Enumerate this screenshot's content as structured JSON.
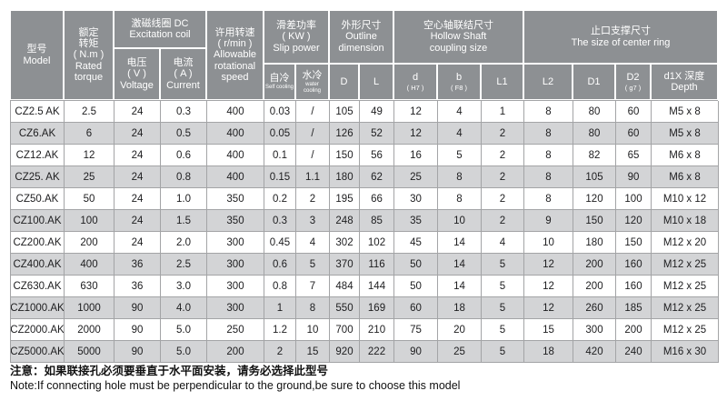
{
  "colors": {
    "header_bg": "#8d9093",
    "header_text": "#ffffff",
    "stripe_bg": "#d3d4d6",
    "row_bg": "#ffffff",
    "border": "#a3a4a6",
    "body_text": "#1d1d1f",
    "note_text": "#111111"
  },
  "header": {
    "model": "型号\nModel",
    "rated_torque": "额定\n转矩\n( N.m )\nRated\ntorque",
    "excitation_coil": "激磁线圈 DC\nExcitation coil",
    "voltage": "电压\n( V )\nVoltage",
    "current": "电流\n( A )\nCurrent",
    "speed": "许用转速\n( r/min )\nAllowable\nrotational\nspeed",
    "slip_power": "滑差功率\n( KW )\nSlip power",
    "self_cooling": {
      "main": "自冷",
      "sub": "Self cooling"
    },
    "water_cooling": {
      "main": "水冷",
      "sub": "water cooling"
    },
    "outline": "外形尺寸\nOutline\ndimension",
    "col_D": "D",
    "col_L": "L",
    "hollow_shaft": "空心轴联结尺寸\nHollow Shaft\ncoupling size",
    "col_d": {
      "main": "d",
      "sub": "( H7 )"
    },
    "col_b": {
      "main": "b",
      "sub": "( F8 )"
    },
    "col_L1": "L1",
    "center_ring": "止口支撑尺寸\nThe size of center ring",
    "col_L2": "L2",
    "col_D1": "D1",
    "col_D2": {
      "main": "D2",
      "sub": "( g7 )"
    },
    "col_d1x": "d1X 深度\nDepth"
  },
  "table": {
    "col_keys": [
      "model",
      "rated_torque",
      "voltage",
      "current",
      "speed",
      "self_cooling",
      "water_cooling",
      "D",
      "L",
      "d",
      "b",
      "L1",
      "L2",
      "D1",
      "D2",
      "depth"
    ],
    "rows": [
      [
        "CZ2.5 AK",
        "2.5",
        "24",
        "0.3",
        "400",
        "0.03",
        "/",
        "105",
        "49",
        "12",
        "4",
        "1",
        "8",
        "80",
        "60",
        "M5 x 8"
      ],
      [
        "CZ6.AK",
        "6",
        "24",
        "0.5",
        "400",
        "0.05",
        "/",
        "126",
        "52",
        "12",
        "4",
        "2",
        "8",
        "80",
        "60",
        "M5 x 8"
      ],
      [
        "CZ12.AK",
        "12",
        "24",
        "0.6",
        "400",
        "0.1",
        "/",
        "150",
        "56",
        "16",
        "5",
        "2",
        "8",
        "82",
        "65",
        "M6 x 8"
      ],
      [
        "CZ25. AK",
        "25",
        "24",
        "0.8",
        "400",
        "0.15",
        "1.1",
        "180",
        "62",
        "25",
        "8",
        "2",
        "8",
        "105",
        "90",
        "M6 x 8"
      ],
      [
        "CZ50.AK",
        "50",
        "24",
        "1.0",
        "350",
        "0.2",
        "2",
        "195",
        "66",
        "30",
        "8",
        "2",
        "8",
        "120",
        "100",
        "M10 x 12"
      ],
      [
        "CZ100.AK",
        "100",
        "24",
        "1.5",
        "350",
        "0.3",
        "3",
        "248",
        "85",
        "35",
        "10",
        "2",
        "9",
        "150",
        "120",
        "M10 x 18"
      ],
      [
        "CZ200.AK",
        "200",
        "24",
        "2.0",
        "300",
        "0.45",
        "4",
        "302",
        "102",
        "45",
        "14",
        "4",
        "10",
        "180",
        "150",
        "M12 x 20"
      ],
      [
        "CZ400.AK",
        "400",
        "36",
        "2.5",
        "300",
        "0.6",
        "5",
        "370",
        "116",
        "50",
        "14",
        "5",
        "12",
        "200",
        "160",
        "M12 x 25"
      ],
      [
        "CZ630.AK",
        "630",
        "36",
        "3.0",
        "300",
        "0.8",
        "7",
        "484",
        "144",
        "50",
        "14",
        "5",
        "12",
        "200",
        "160",
        "M12 x 25"
      ],
      [
        "CZ1000.AK",
        "1000",
        "90",
        "4.0",
        "300",
        "1",
        "8",
        "550",
        "169",
        "60",
        "18",
        "5",
        "12",
        "260",
        "185",
        "M12 x 25"
      ],
      [
        "CZ2000.AK",
        "2000",
        "90",
        "5.0",
        "250",
        "1.2",
        "10",
        "700",
        "210",
        "75",
        "20",
        "5",
        "15",
        "300",
        "200",
        "M12 x 25"
      ],
      [
        "CZ5000.AK",
        "5000",
        "90",
        "5.0",
        "200",
        "2",
        "15",
        "920",
        "222",
        "90",
        "25",
        "5",
        "18",
        "420",
        "240",
        "M16 x 30"
      ]
    ]
  },
  "notes": {
    "zh": "注意：如果联接孔必须要垂直于水平面安装，请务必选择此型号",
    "en": "Note:If connecting hole must be perpendicular to the ground,be sure to choose this model"
  }
}
